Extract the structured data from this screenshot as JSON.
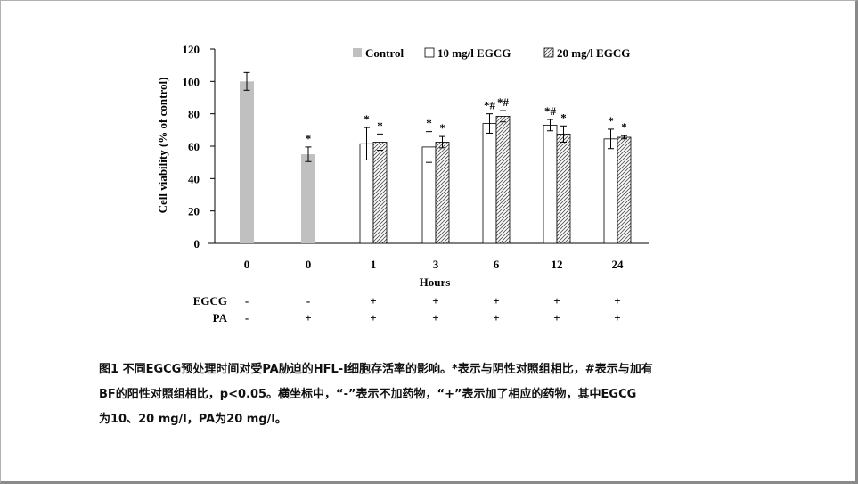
{
  "chart_data": {
    "type": "bar",
    "ylabel": "Cell viability (% of control)",
    "xlabel": "Hours",
    "ylim": [
      0,
      120
    ],
    "yticks": [
      0,
      20,
      40,
      60,
      80,
      100,
      120
    ],
    "legend_position": "top",
    "groups": [
      {
        "x_label": "0",
        "bars": [
          {
            "series": "Control",
            "value": 100,
            "error": 5.5,
            "mark": ""
          }
        ]
      },
      {
        "x_label": "0",
        "bars": [
          {
            "series": "Control",
            "value": 55,
            "error": 4.5,
            "mark": "*"
          }
        ]
      },
      {
        "x_label": "1",
        "bars": [
          {
            "series": "10 mg/l EGCG",
            "value": 61.5,
            "error": 10,
            "mark": "*"
          },
          {
            "series": "20 mg/l EGCG",
            "value": 62.5,
            "error": 5,
            "mark": "*"
          }
        ]
      },
      {
        "x_label": "3",
        "bars": [
          {
            "series": "10 mg/l EGCG",
            "value": 59.5,
            "error": 9.5,
            "mark": "*"
          },
          {
            "series": "20 mg/l EGCG",
            "value": 62.5,
            "error": 3.5,
            "mark": "*"
          }
        ]
      },
      {
        "x_label": "6",
        "bars": [
          {
            "series": "10 mg/l EGCG",
            "value": 74,
            "error": 6,
            "mark": "*#"
          },
          {
            "series": "20 mg/l EGCG",
            "value": 78.5,
            "error": 3.5,
            "mark": "*#"
          }
        ]
      },
      {
        "x_label": "12",
        "bars": [
          {
            "series": "10 mg/l EGCG",
            "value": 73,
            "error": 3.5,
            "mark": "*#"
          },
          {
            "series": "20 mg/l EGCG",
            "value": 67.5,
            "error": 5,
            "mark": "*"
          }
        ]
      },
      {
        "x_label": "24",
        "bars": [
          {
            "series": "10 mg/l EGCG",
            "value": 64.5,
            "error": 6,
            "mark": "*"
          },
          {
            "series": "20 mg/l EGCG",
            "value": 65.5,
            "error": 1,
            "mark": "*"
          }
        ]
      }
    ],
    "series": [
      {
        "name": "Control",
        "color": "#c0c0c0",
        "fill": "solid"
      },
      {
        "name": "10 mg/l EGCG",
        "color": "#ffffff",
        "fill": "outline"
      },
      {
        "name": "20 mg/l EGCG",
        "color": "#ffffff",
        "fill": "hatched"
      }
    ],
    "treatment_rows": [
      {
        "label": "EGCG",
        "values": [
          "-",
          "-",
          "+",
          "+",
          "+",
          "+",
          "+"
        ]
      },
      {
        "label": "PA",
        "values": [
          "-",
          "+",
          "+",
          "+",
          "+",
          "+",
          "+"
        ]
      }
    ]
  },
  "caption": "图1 不同EGCG预处理时间对受PA胁迫的HFL-Ⅰ细胞存活率的影响。*表示与阴性对照组相比，#表示与加有\nBF的阳性对照组相比，p<0.05。横坐标中，“-”表示不加药物，“+”表示加了相应的药物，其中EGCG\n为10、20 mg/l，PA为20 mg/l。"
}
